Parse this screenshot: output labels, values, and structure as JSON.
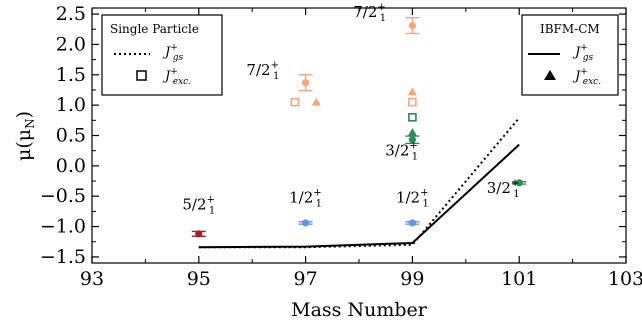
{
  "chart_data": {
    "type": "scatter",
    "xlabel": "Mass Number",
    "ylabel": "μ(μ",
    "ylabel_sub": "N",
    "ylabel_close": ")",
    "xlim": [
      93,
      103
    ],
    "ylim": [
      -1.6,
      2.6
    ],
    "xticks": [
      93,
      95,
      97,
      99,
      101,
      103
    ],
    "xtick_labels": [
      "93",
      "95",
      "97",
      "99",
      "101",
      "103"
    ],
    "yticks": [
      -1.5,
      -1.0,
      -0.5,
      0.0,
      0.5,
      1.0,
      1.5,
      2.0,
      2.5
    ],
    "ytick_labels": [
      "−1.5",
      "−1.0",
      "−0.5",
      "0.0",
      "0.5",
      "1.0",
      "1.5",
      "2.0",
      "2.5"
    ],
    "grid": false,
    "colors": {
      "red": "#a4202c",
      "blue": "#6495ed",
      "salmon": "#f4a582",
      "green": "#2e8b57"
    },
    "experimental": [
      {
        "x": 95,
        "y": -1.12,
        "err": 0.04,
        "color": "red"
      },
      {
        "x": 97,
        "y": -0.94,
        "err": 0.02,
        "color": "blue"
      },
      {
        "x": 97,
        "y": 1.37,
        "err": 0.13,
        "color": "salmon"
      },
      {
        "x": 99,
        "y": -0.94,
        "err": 0.02,
        "color": "blue"
      },
      {
        "x": 99,
        "y": 2.31,
        "err": 0.13,
        "color": "salmon"
      },
      {
        "x": 99,
        "y": 0.43,
        "err": 0.06,
        "color": "green"
      },
      {
        "x": 101,
        "y": -0.28,
        "err": 0.02,
        "color": "green"
      }
    ],
    "sp_excited": [
      {
        "x": 96.8,
        "y": 1.05,
        "color": "salmon"
      },
      {
        "x": 99,
        "y": 1.05,
        "color": "salmon"
      },
      {
        "x": 99,
        "y": 0.8,
        "color": "green"
      }
    ],
    "ibfm_excited": [
      {
        "x": 97.2,
        "y": 1.05,
        "color": "salmon"
      },
      {
        "x": 99,
        "y": 1.22,
        "color": "salmon"
      },
      {
        "x": 99,
        "y": 0.55,
        "color": "green"
      }
    ],
    "series": [
      {
        "style": "dotted",
        "x": [
          95,
          97,
          99,
          101
        ],
        "y": [
          -1.34,
          -1.34,
          -1.3,
          0.79
        ]
      },
      {
        "style": "solid",
        "x": [
          95,
          97,
          99,
          101
        ],
        "y": [
          -1.34,
          -1.33,
          -1.27,
          0.35
        ]
      }
    ],
    "annotations": [
      {
        "x": 95,
        "y": -0.72,
        "label": "5/2",
        "sub": "1",
        "sup": "+"
      },
      {
        "x": 97,
        "y": -0.6,
        "label": "1/2",
        "sub": "1",
        "sup": "+"
      },
      {
        "x": 99,
        "y": -0.6,
        "label": "1/2",
        "sub": "1",
        "sup": "+"
      },
      {
        "x": 96.2,
        "y": 1.5,
        "label": "7/2",
        "sub": "1",
        "sup": "+"
      },
      {
        "x": 98.2,
        "y": 2.45,
        "label": "7/2",
        "sub": "1",
        "sup": "+"
      },
      {
        "x": 98.8,
        "y": 0.17,
        "label": "3/2",
        "sub": "1",
        "sup": "+"
      },
      {
        "x": 100.7,
        "y": -0.45,
        "label": "3/2",
        "sub": "1",
        "sup": "+"
      }
    ],
    "legends": [
      {
        "placement": "top-left",
        "title": "Single Particle",
        "entries": [
          {
            "marker": "dotted-line",
            "label": "J",
            "sub": "gs",
            "sup": "+"
          },
          {
            "marker": "open-square",
            "label": "J",
            "sub": "exc.",
            "sup": "+"
          }
        ]
      },
      {
        "placement": "top-right",
        "title": "IBFM-CM",
        "entries": [
          {
            "marker": "solid-line",
            "label": "J",
            "sub": "gs",
            "sup": "+"
          },
          {
            "marker": "filled-triangle",
            "label": "J",
            "sub": "exc.",
            "sup": "+"
          }
        ]
      }
    ]
  }
}
